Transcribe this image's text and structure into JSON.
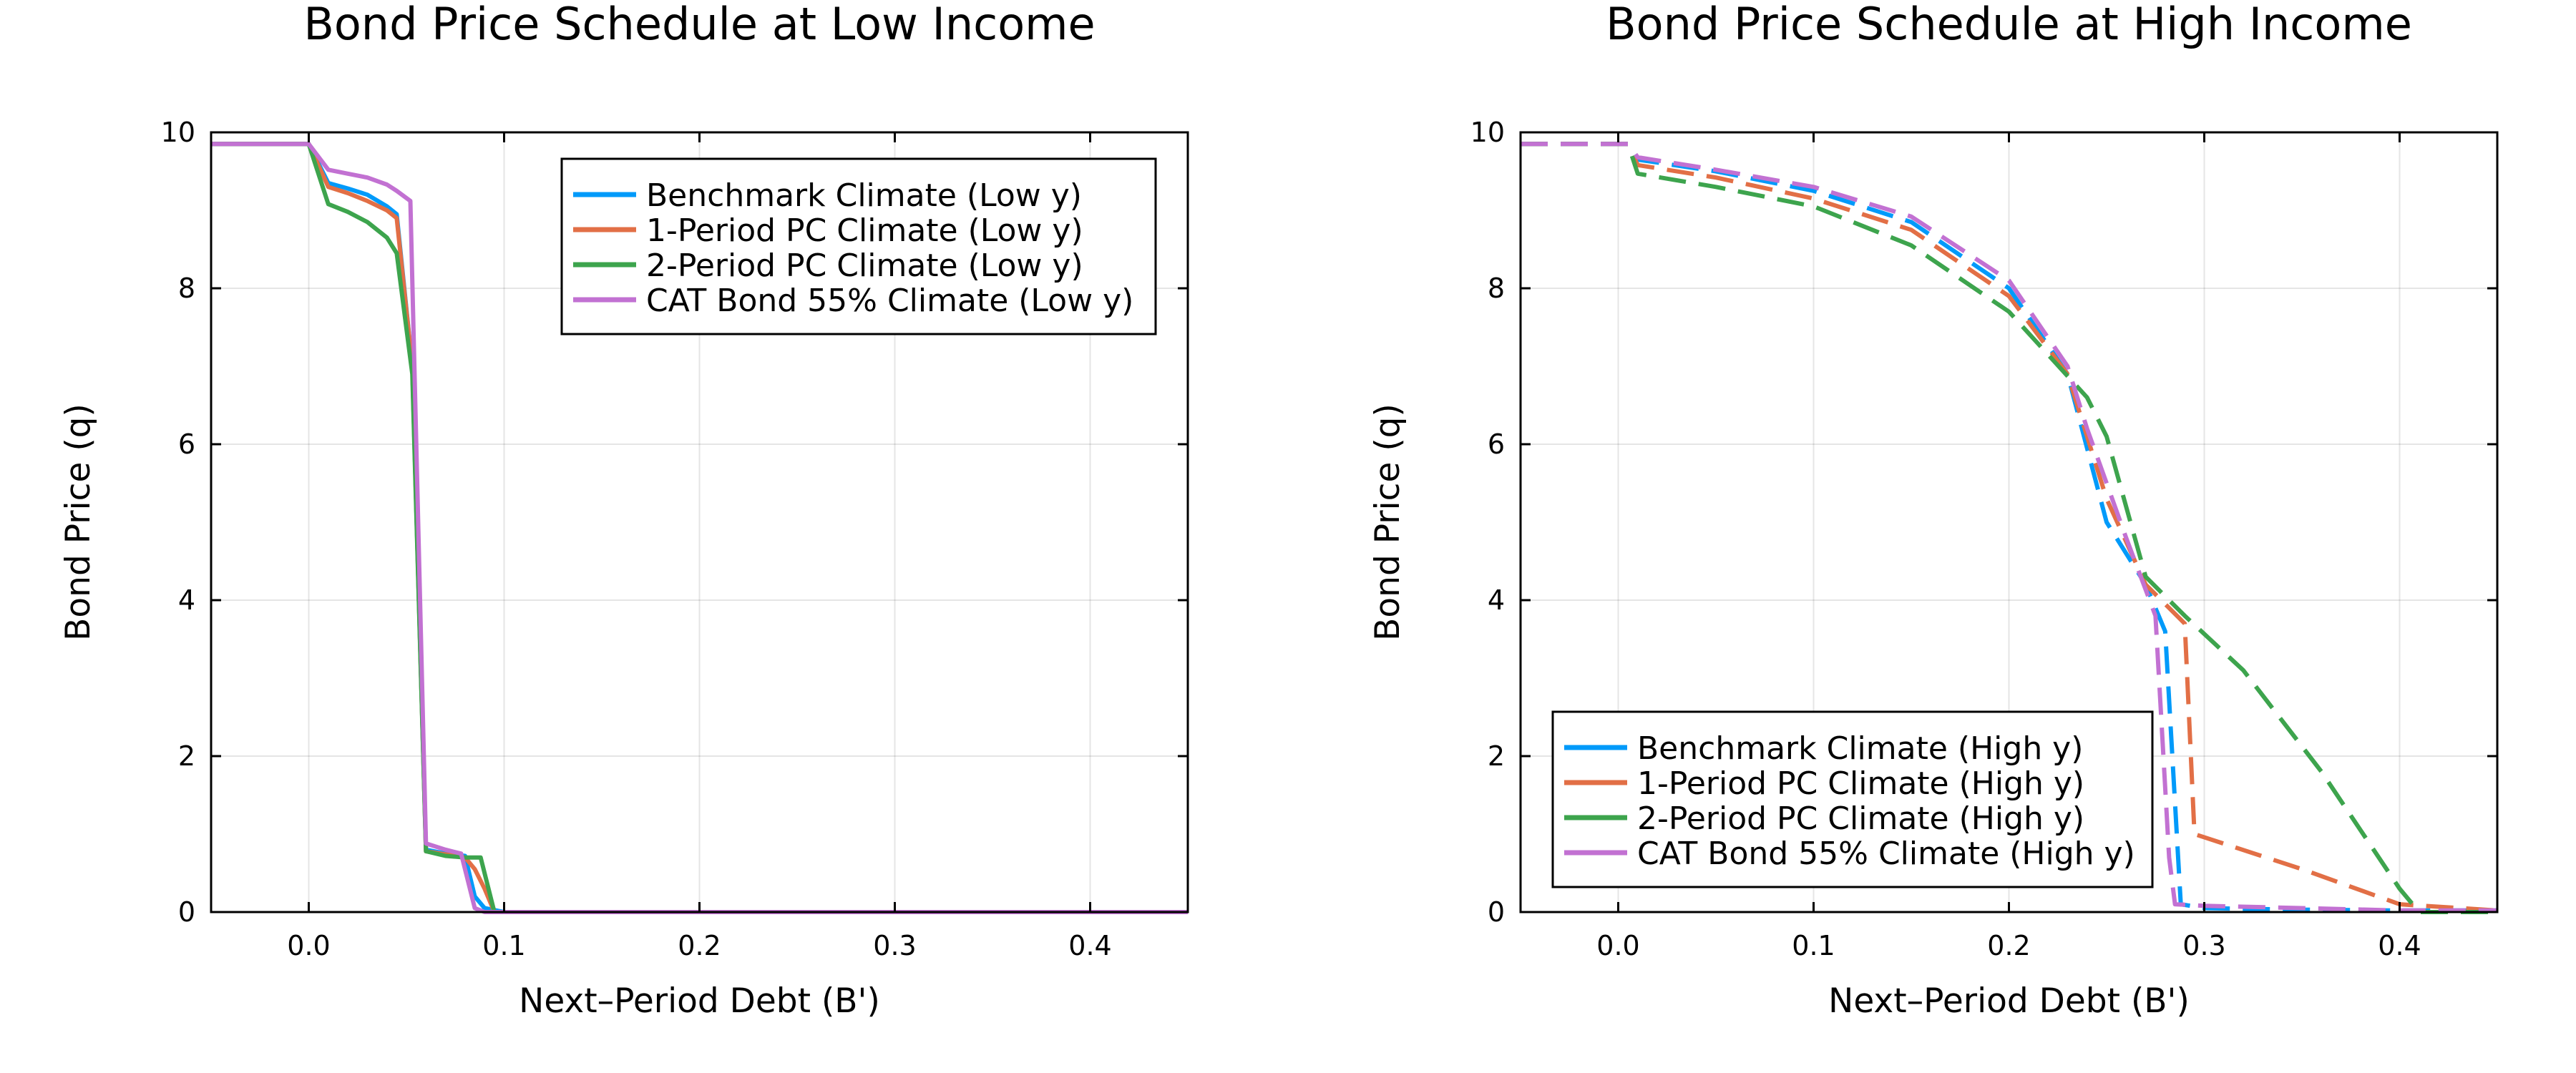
{
  "chart_data": [
    {
      "type": "line",
      "title": "Bond Price Schedule at Low Income",
      "xlabel": "Next–Period Debt (B')",
      "ylabel": "Bond Price (q)",
      "xlim": [
        -0.05,
        0.45
      ],
      "ylim": [
        0,
        10
      ],
      "x_ticks": [
        0.0,
        0.1,
        0.2,
        0.3,
        0.4
      ],
      "x_tick_labels": [
        "0.0",
        "0.1",
        "0.2",
        "0.3",
        "0.4"
      ],
      "y_ticks": [
        0,
        2,
        4,
        6,
        8,
        10
      ],
      "y_tick_labels": [
        "0",
        "2",
        "4",
        "6",
        "8",
        "10"
      ],
      "grid": true,
      "legend_position": "top-right",
      "line_style": "solid",
      "series": [
        {
          "name": "Benchmark Climate (Low y)",
          "color": "#009AFA",
          "points": [
            [
              -0.05,
              9.85
            ],
            [
              0.0,
              9.85
            ],
            [
              0.01,
              9.35
            ],
            [
              0.02,
              9.28
            ],
            [
              0.03,
              9.2
            ],
            [
              0.04,
              9.05
            ],
            [
              0.045,
              8.95
            ],
            [
              0.053,
              7.0
            ],
            [
              0.06,
              0.8
            ],
            [
              0.07,
              0.75
            ],
            [
              0.08,
              0.72
            ],
            [
              0.085,
              0.2
            ],
            [
              0.09,
              0.05
            ],
            [
              0.1,
              0.0
            ],
            [
              0.45,
              0.0
            ]
          ]
        },
        {
          "name": "1-Period PC Climate (Low y)",
          "color": "#E26F46",
          "points": [
            [
              -0.05,
              9.85
            ],
            [
              0.0,
              9.85
            ],
            [
              0.01,
              9.3
            ],
            [
              0.02,
              9.22
            ],
            [
              0.03,
              9.12
            ],
            [
              0.04,
              9.0
            ],
            [
              0.045,
              8.9
            ],
            [
              0.053,
              7.0
            ],
            [
              0.06,
              0.78
            ],
            [
              0.07,
              0.74
            ],
            [
              0.08,
              0.7
            ],
            [
              0.085,
              0.55
            ],
            [
              0.09,
              0.3
            ],
            [
              0.095,
              0.0
            ],
            [
              0.45,
              0.0
            ]
          ]
        },
        {
          "name": "2-Period PC Climate (Low y)",
          "color": "#3DA44D",
          "points": [
            [
              -0.05,
              9.85
            ],
            [
              0.0,
              9.85
            ],
            [
              0.01,
              9.08
            ],
            [
              0.02,
              8.98
            ],
            [
              0.03,
              8.85
            ],
            [
              0.04,
              8.65
            ],
            [
              0.045,
              8.45
            ],
            [
              0.053,
              6.9
            ],
            [
              0.06,
              0.78
            ],
            [
              0.07,
              0.72
            ],
            [
              0.08,
              0.7
            ],
            [
              0.088,
              0.7
            ],
            [
              0.095,
              0.0
            ],
            [
              0.45,
              0.0
            ]
          ]
        },
        {
          "name": "CAT Bond 55% Climate (Low y)",
          "color": "#C271D2",
          "points": [
            [
              -0.05,
              9.85
            ],
            [
              0.0,
              9.85
            ],
            [
              0.01,
              9.52
            ],
            [
              0.02,
              9.47
            ],
            [
              0.03,
              9.42
            ],
            [
              0.04,
              9.33
            ],
            [
              0.045,
              9.25
            ],
            [
              0.052,
              9.12
            ],
            [
              0.06,
              0.88
            ],
            [
              0.07,
              0.8
            ],
            [
              0.078,
              0.75
            ],
            [
              0.085,
              0.05
            ],
            [
              0.09,
              0.0
            ],
            [
              0.45,
              0.0
            ]
          ]
        }
      ]
    },
    {
      "type": "line",
      "title": "Bond Price Schedule at High Income",
      "xlabel": "Next–Period Debt (B')",
      "ylabel": "Bond Price (q)",
      "xlim": [
        -0.05,
        0.45
      ],
      "ylim": [
        0,
        10
      ],
      "x_ticks": [
        0.0,
        0.1,
        0.2,
        0.3,
        0.4
      ],
      "x_tick_labels": [
        "0.0",
        "0.1",
        "0.2",
        "0.3",
        "0.4"
      ],
      "y_ticks": [
        0,
        2,
        4,
        6,
        8,
        10
      ],
      "y_tick_labels": [
        "0",
        "2",
        "4",
        "6",
        "8",
        "10"
      ],
      "grid": true,
      "legend_position": "bottom-left",
      "line_style": "dashed",
      "series": [
        {
          "name": "Benchmark Climate (High y)",
          "color": "#009AFA",
          "points": [
            [
              -0.05,
              9.85
            ],
            [
              0.005,
              9.85
            ],
            [
              0.01,
              9.65
            ],
            [
              0.05,
              9.5
            ],
            [
              0.1,
              9.25
            ],
            [
              0.15,
              8.85
            ],
            [
              0.2,
              8.0
            ],
            [
              0.23,
              6.9
            ],
            [
              0.25,
              5.0
            ],
            [
              0.27,
              4.2
            ],
            [
              0.28,
              3.6
            ],
            [
              0.288,
              0.1
            ],
            [
              0.3,
              0.05
            ],
            [
              0.35,
              0.03
            ],
            [
              0.4,
              0.02
            ],
            [
              0.45,
              0.02
            ]
          ]
        },
        {
          "name": "1-Period PC Climate (High y)",
          "color": "#E26F46",
          "points": [
            [
              -0.05,
              9.85
            ],
            [
              0.005,
              9.85
            ],
            [
              0.01,
              9.58
            ],
            [
              0.05,
              9.42
            ],
            [
              0.1,
              9.15
            ],
            [
              0.15,
              8.75
            ],
            [
              0.2,
              7.9
            ],
            [
              0.23,
              6.9
            ],
            [
              0.25,
              5.3
            ],
            [
              0.27,
              4.2
            ],
            [
              0.29,
              3.7
            ],
            [
              0.295,
              1.0
            ],
            [
              0.35,
              0.55
            ],
            [
              0.4,
              0.1
            ],
            [
              0.45,
              0.02
            ]
          ]
        },
        {
          "name": "2-Period PC Climate (High y)",
          "color": "#3DA44D",
          "points": [
            [
              -0.05,
              9.85
            ],
            [
              0.005,
              9.85
            ],
            [
              0.01,
              9.47
            ],
            [
              0.05,
              9.3
            ],
            [
              0.1,
              9.05
            ],
            [
              0.15,
              8.55
            ],
            [
              0.2,
              7.7
            ],
            [
              0.24,
              6.6
            ],
            [
              0.25,
              6.1
            ],
            [
              0.27,
              4.3
            ],
            [
              0.29,
              3.8
            ],
            [
              0.32,
              3.1
            ],
            [
              0.36,
              1.8
            ],
            [
              0.4,
              0.3
            ],
            [
              0.41,
              0.0
            ],
            [
              0.45,
              0.0
            ]
          ]
        },
        {
          "name": "CAT Bond 55% Climate (High y)",
          "color": "#C271D2",
          "points": [
            [
              -0.05,
              9.85
            ],
            [
              0.005,
              9.85
            ],
            [
              0.01,
              9.68
            ],
            [
              0.05,
              9.52
            ],
            [
              0.1,
              9.3
            ],
            [
              0.15,
              8.92
            ],
            [
              0.2,
              8.1
            ],
            [
              0.23,
              7.0
            ],
            [
              0.24,
              6.2
            ],
            [
              0.26,
              4.8
            ],
            [
              0.275,
              3.8
            ],
            [
              0.282,
              0.7
            ],
            [
              0.285,
              0.1
            ],
            [
              0.3,
              0.08
            ],
            [
              0.35,
              0.05
            ],
            [
              0.4,
              0.02
            ],
            [
              0.45,
              0.02
            ]
          ]
        }
      ]
    }
  ]
}
